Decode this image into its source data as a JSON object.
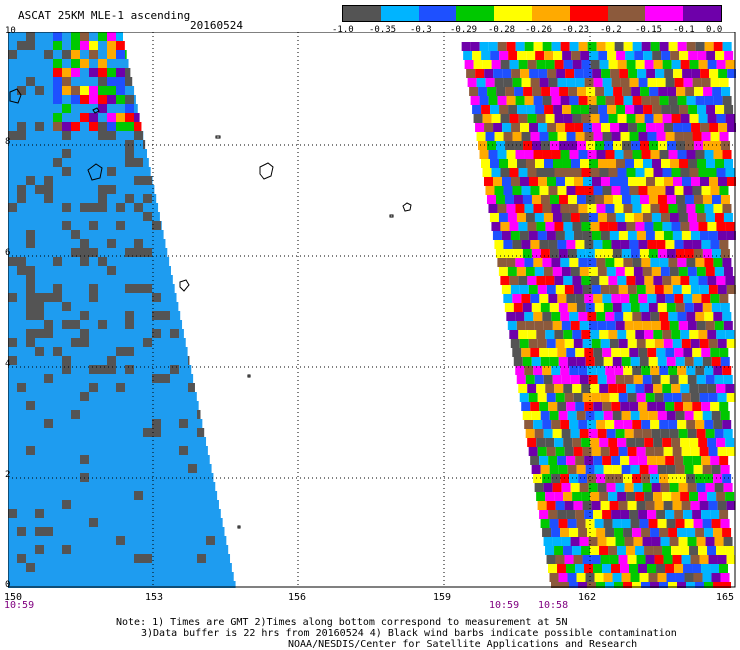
{
  "header": {
    "title": "ASCAT 25KM MLE-1 ascending",
    "date": "20160524"
  },
  "colorbar": {
    "colors": [
      "#545454",
      "#00b4ff",
      "#1e50ff",
      "#00c800",
      "#ffff00",
      "#ffaa00",
      "#ff0000",
      "#8c5a3c",
      "#ff00ff",
      "#6e00aa"
    ],
    "labels": [
      "-1.0",
      "-0.35",
      "-0.3",
      "-0.29",
      "-0.28",
      "-0.26",
      "-0.23",
      "-0.2",
      "-0.15",
      "-0.1",
      "0.0"
    ]
  },
  "map": {
    "lat_labels": [
      "10",
      "8",
      "6",
      "4",
      "2",
      "0"
    ],
    "lon_labels": [
      "150",
      "153",
      "156",
      "159",
      "162",
      "165"
    ],
    "times": [
      "10:59",
      "10:59",
      "10:58"
    ],
    "swath_colors": [
      "#1e50ff",
      "#ffff00",
      "#ffaa00",
      "#ff0000",
      "#00c800",
      "#00b4ff",
      "#ff00ff",
      "#8c5a3c",
      "#545454",
      "#6e00aa"
    ]
  },
  "footer": {
    "line1": "Note: 1) Times are GMT 2)Times along bottom correspond to measurement at 5N",
    "line2": "3)Data buffer is 22 hrs from 20160524 4) Black wind barbs indicate possible contamination",
    "line3": "NOAA/NESDIS/Center for Satellite Applications and Research"
  }
}
